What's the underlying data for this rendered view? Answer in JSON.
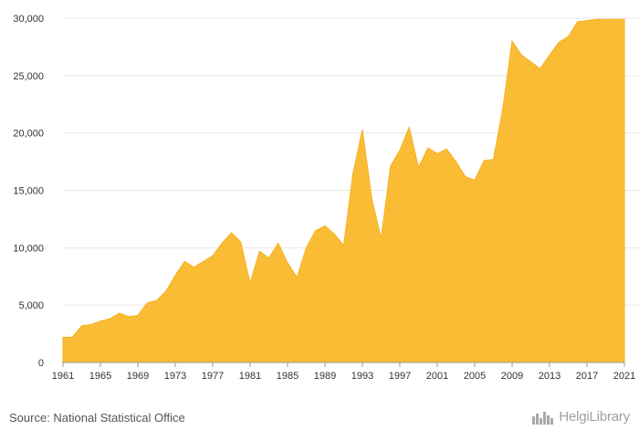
{
  "chart_data": {
    "type": "area",
    "title": "",
    "xlabel": "",
    "ylabel": "",
    "x": [
      1961,
      1962,
      1963,
      1964,
      1965,
      1966,
      1967,
      1968,
      1969,
      1970,
      1971,
      1972,
      1973,
      1974,
      1975,
      1976,
      1977,
      1978,
      1979,
      1980,
      1981,
      1982,
      1983,
      1984,
      1985,
      1986,
      1987,
      1988,
      1989,
      1990,
      1991,
      1992,
      1993,
      1994,
      1995,
      1996,
      1997,
      1998,
      1999,
      2000,
      2001,
      2002,
      2003,
      2004,
      2005,
      2006,
      2007,
      2008,
      2009,
      2010,
      2011,
      2012,
      2013,
      2014,
      2015,
      2016,
      2017,
      2018,
      2019,
      2020,
      2021
    ],
    "values": [
      2200,
      2200,
      3200,
      3300,
      3600,
      3800,
      4300,
      4000,
      4100,
      5200,
      5400,
      6200,
      7600,
      8800,
      8300,
      8800,
      9300,
      10400,
      11300,
      10500,
      6900,
      9700,
      9100,
      10400,
      8700,
      7400,
      10000,
      11500,
      11900,
      11200,
      10200,
      16500,
      20300,
      14300,
      10800,
      17100,
      18500,
      20500,
      17000,
      18700,
      18200,
      18600,
      17500,
      16200,
      15900,
      17600,
      17700,
      22100,
      28000,
      26800,
      26200,
      25600,
      26800,
      27900,
      28400,
      29700,
      29800,
      29900,
      29900,
      29900,
      29900
    ],
    "xlim": [
      1961,
      2021
    ],
    "ylim": [
      0,
      30000
    ],
    "x_ticks": [
      "1961",
      "1965",
      "1969",
      "1973",
      "1977",
      "1981",
      "1985",
      "1989",
      "1993",
      "1997",
      "2001",
      "2005",
      "2009",
      "2013",
      "2017",
      "2021"
    ],
    "y_ticks": [
      "0",
      "5,000",
      "10,000",
      "15,000",
      "20,000",
      "25,000",
      "30,000"
    ],
    "grid": true,
    "legend": "none",
    "colors": {
      "fill": "#fbbc35",
      "stroke": "#f5b020",
      "grid": "#e6e6e6",
      "axis": "#999999"
    }
  },
  "footer": {
    "source": "Source: National Statistical Office"
  },
  "brand": {
    "name": "HelgiLibrary",
    "icon": "city-skyline-icon"
  }
}
